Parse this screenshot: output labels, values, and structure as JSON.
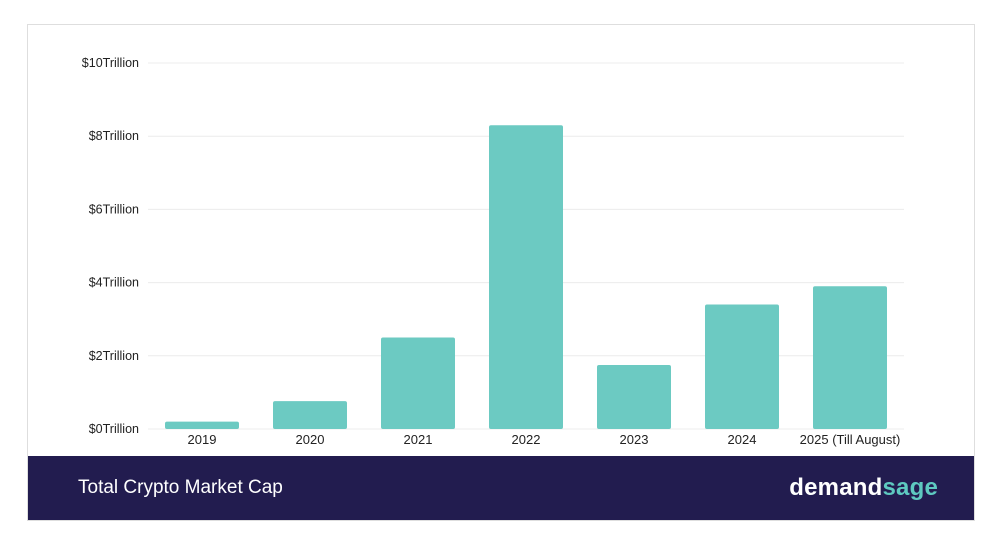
{
  "chart_data": {
    "type": "bar",
    "title": "Total Crypto Market Cap",
    "xlabel": "",
    "ylabel": "",
    "categories": [
      "2019",
      "2020",
      "2021",
      "2022",
      "2023",
      "2024",
      "2025 (Till August)"
    ],
    "values": [
      0.2,
      0.76,
      2.5,
      8.3,
      1.75,
      3.4,
      3.9
    ],
    "ylim": [
      0,
      10
    ],
    "yticks": [
      0,
      2,
      4,
      6,
      8,
      10
    ],
    "ytick_labels": [
      "$0Trillion",
      "$2Trillion",
      "$4Trillion",
      "$6Trillion",
      "$8Trillion",
      "$10Trillion"
    ],
    "grid": true,
    "bar_color": "#6ccac2",
    "grid_color": "#ececec"
  },
  "footer": {
    "title": "Total Crypto Market Cap",
    "brand_part1": "demand",
    "brand_part2": "sage",
    "background": "#221c4f"
  }
}
